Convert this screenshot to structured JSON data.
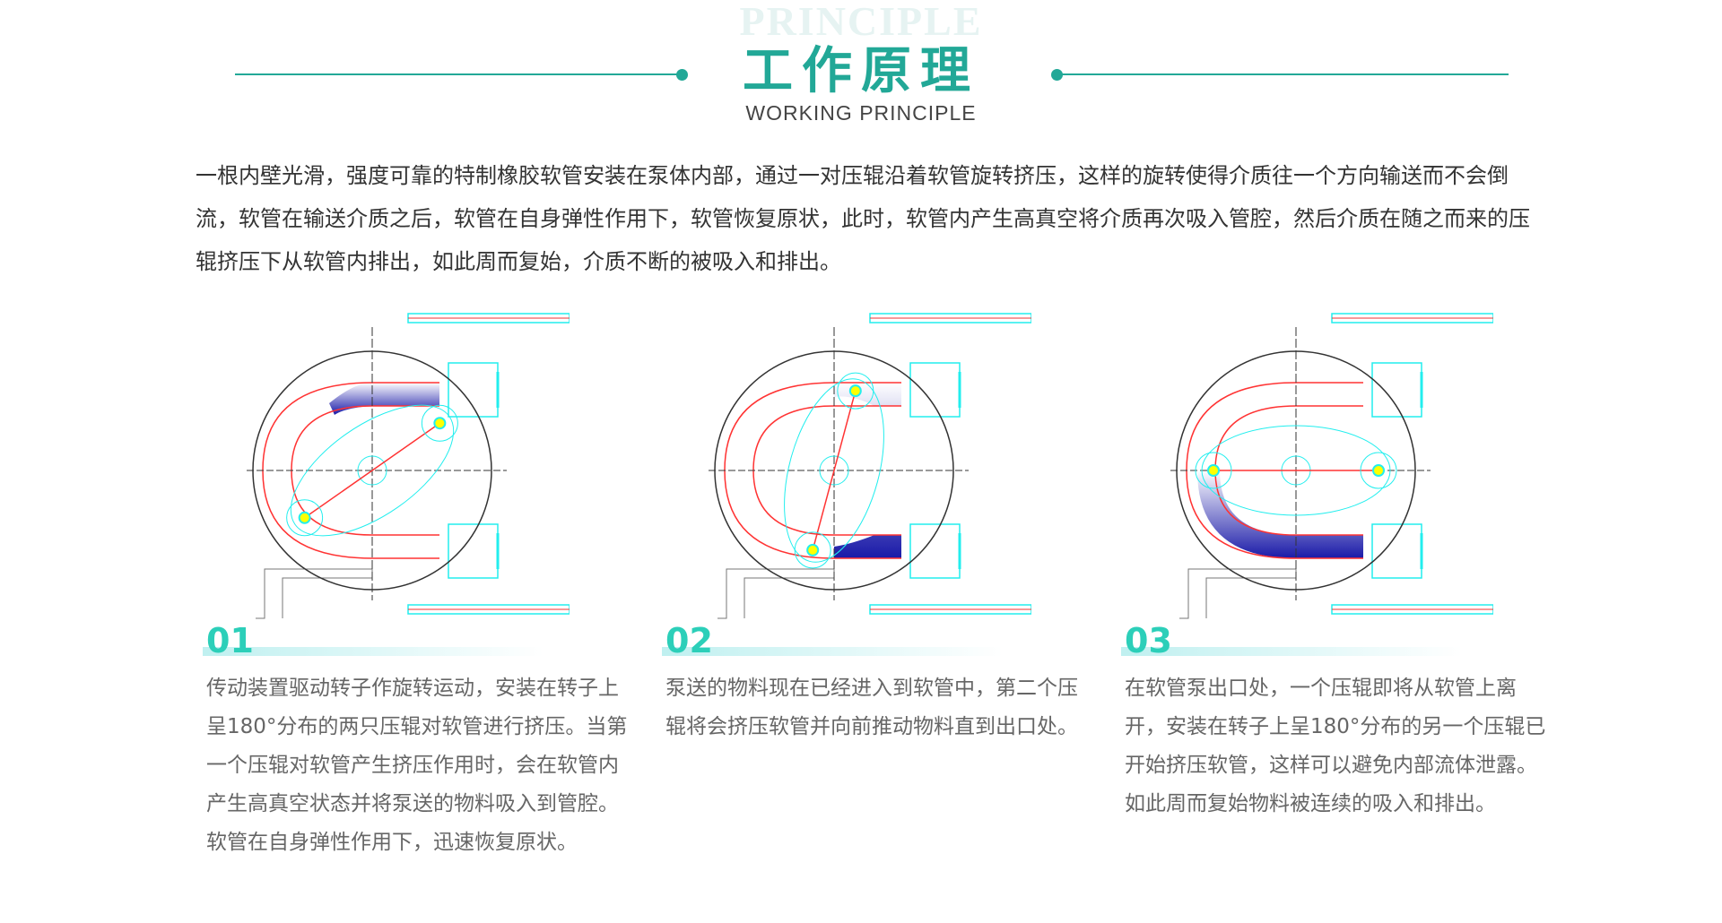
{
  "header": {
    "watermark": "PRINCIPLE",
    "title": "工作原理",
    "subtitle": "WORKING PRINCIPLE",
    "accent_color": "#22a897"
  },
  "intro": "一根内壁光滑，强度可靠的特制橡胶软管安装在泵体内部，通过一对压辊沿着软管旋转挤压，这样的旋转使得介质往一个方向输送而不会倒流，软管在输送介质之后，软管在自身弹性作用下，软管恢复原状，此时，软管内产生高真空将介质再次吸入管腔，然后介质在随之而来的压辊挤压下从软管内排出，如此周而复始，介质不断的被吸入和排出。",
  "steps": [
    {
      "number": "01",
      "text": "传动装置驱动转子作旋转运动，安装在转子上呈180°分布的两只压辊对软管进行挤压。当第一个压辊对软管产生挤压作用时，会在软管内产生高真空状态并将泵送的物料吸入到管腔。软管在自身弹性作用下，迅速恢复原状。"
    },
    {
      "number": "02",
      "text": "泵送的物料现在已经进入到软管中，第二个压辊将会挤压软管并向前推动物料直到出口处。"
    },
    {
      "number": "03",
      "text": "在软管泵出口处，一个压辊即将从软管上离开，安装在转子上呈180°分布的另一个压辊已开始挤压软管，这样可以避免内部流体泄露。如此周而复始物料被连续的吸入和排出。"
    }
  ]
}
